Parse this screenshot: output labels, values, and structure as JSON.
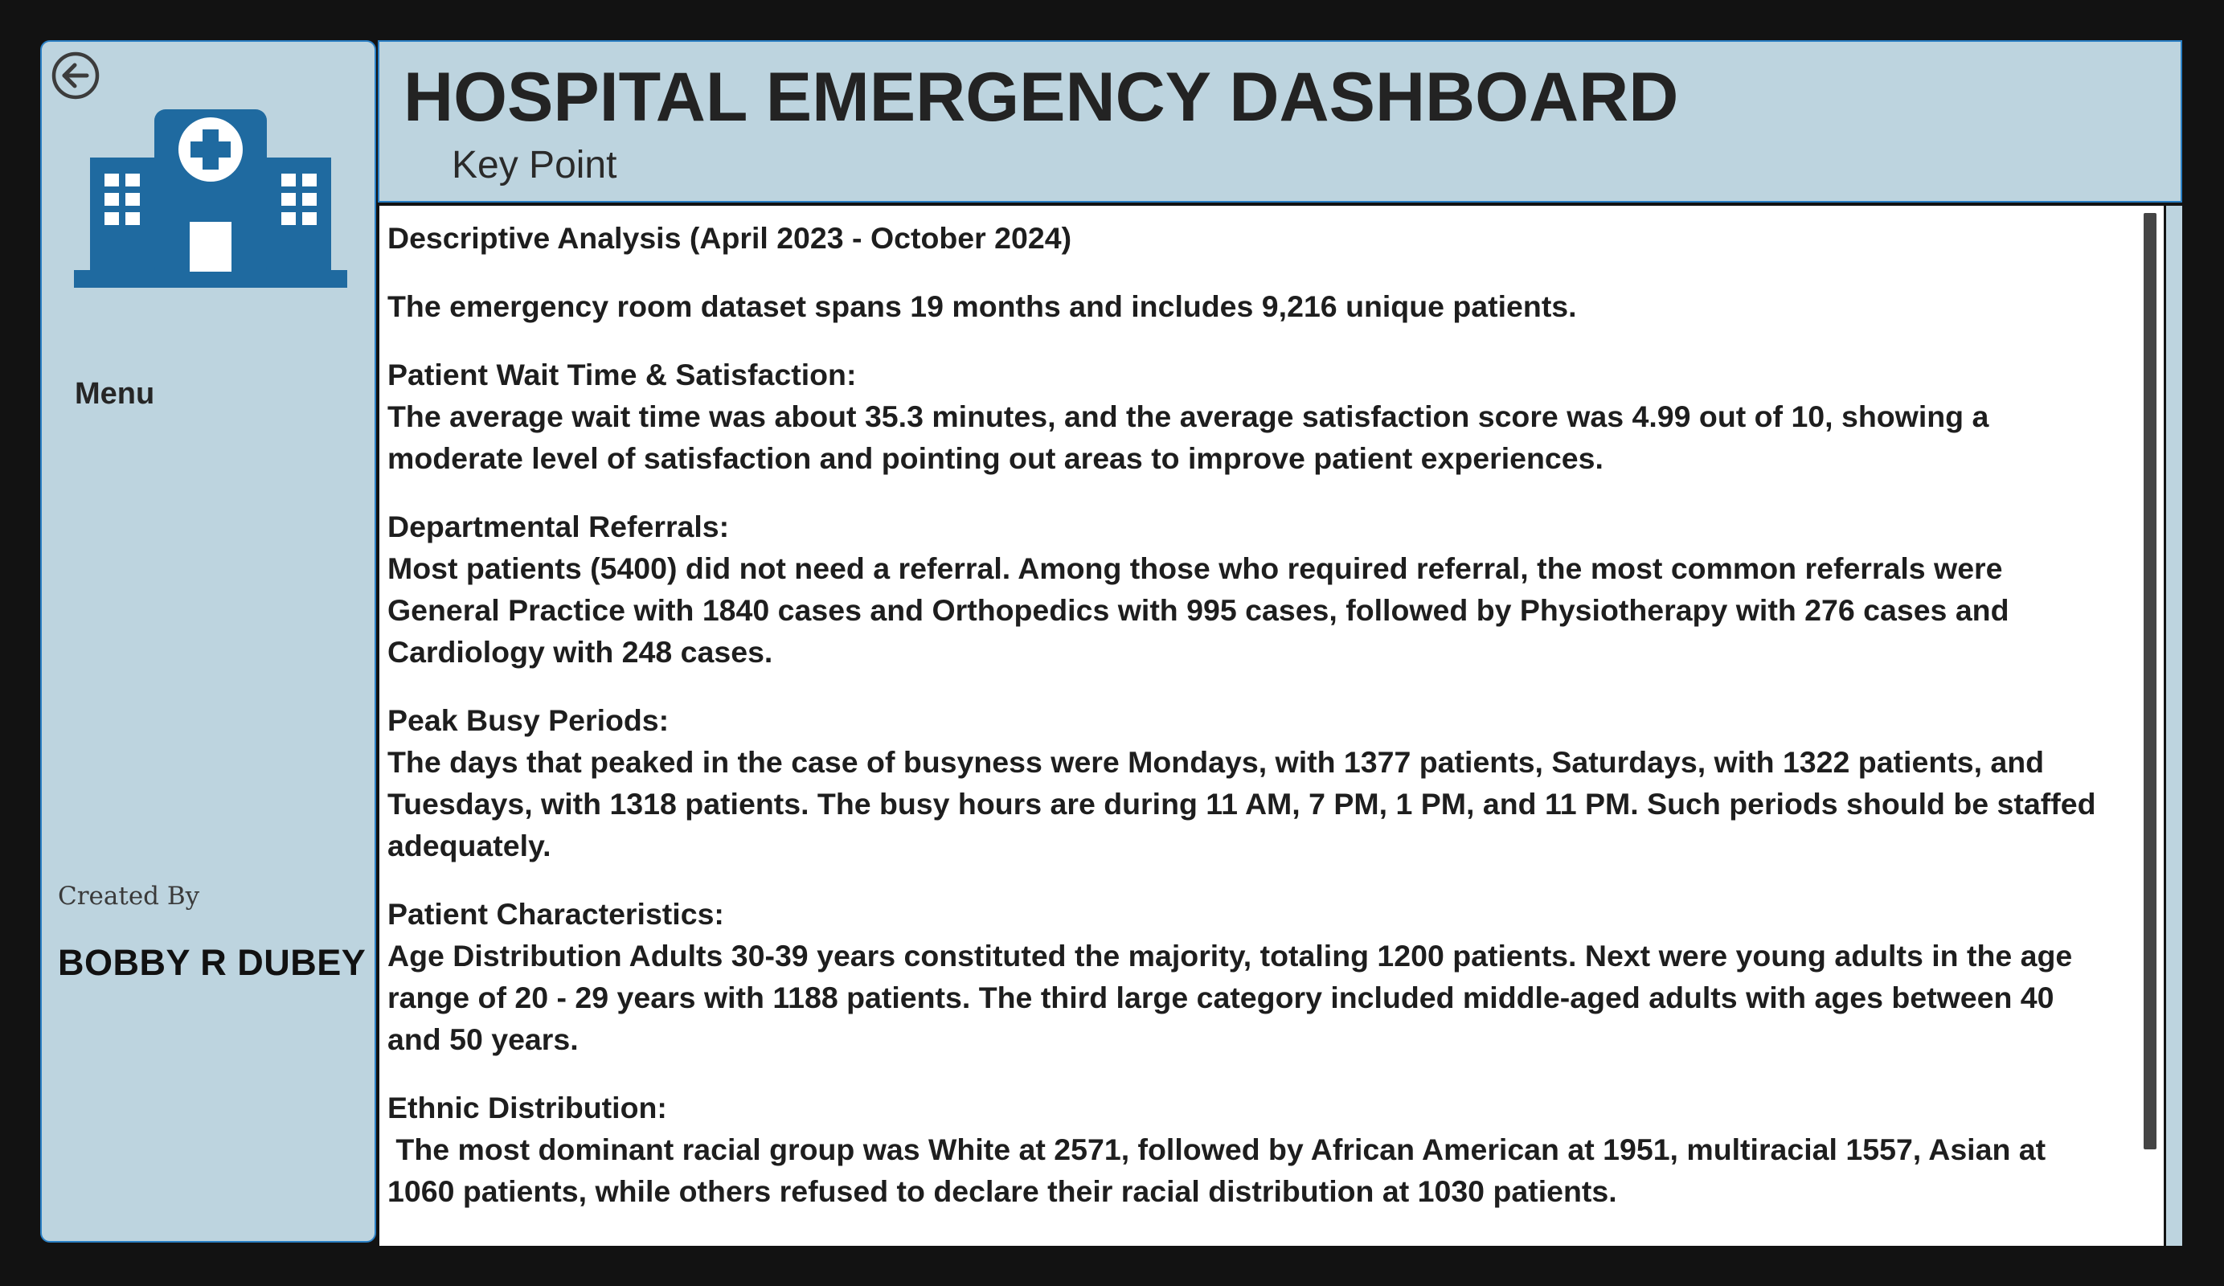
{
  "sidebar": {
    "back_icon": "arrow-left-circle-icon",
    "logo_icon": "hospital-building-icon",
    "menu_label": "Menu",
    "created_by_label": "Created By",
    "author": "BOBBY R DUBEY"
  },
  "header": {
    "title": "HOSPITAL EMERGENCY DASHBOARD",
    "subtitle": "Key Point"
  },
  "colors": {
    "panel_background": "#bdd4df",
    "panel_border": "#2a7fc4",
    "logo_blue": "#1f6aa0",
    "page_background": "#121212"
  },
  "content": {
    "intro_heading": "Descriptive Analysis (April 2023 - October 2024)",
    "intro_text": "The emergency room dataset spans 19 months and includes 9,216 unique patients.",
    "sections": [
      {
        "heading": "Patient Wait Time & Satisfaction:",
        "text": "The average wait time was about 35.3 minutes, and the average satisfaction score was 4.99 out of 10, showing a moderate level of satisfaction and pointing out areas to improve patient experiences."
      },
      {
        "heading": "Departmental Referrals:",
        "text": "Most patients (5400) did not need a referral. Among those who required referral, the most common referrals were General Practice with 1840 cases and Orthopedics with 995 cases, followed by Physiotherapy with 276 cases and Cardiology with 248 cases."
      },
      {
        "heading": "Peak Busy Periods:",
        "text": "The days that peaked in the case of busyness were Mondays, with 1377 patients, Saturdays, with 1322 patients, and Tuesdays, with 1318 patients. The busy hours are during 11 AM, 7 PM, 1 PM, and 11 PM. Such periods should be staffed adequately."
      },
      {
        "heading": "Patient Characteristics:",
        "text": "Age Distribution Adults 30-39 years constituted the majority, totaling 1200 patients. Next were young adults in the age range of 20 - 29 years with 1188 patients. The third large category included middle-aged adults with ages between 40 and 50 years."
      },
      {
        "heading": "Ethnic Distribution:",
        "text": " The most dominant racial group was White at 2571, followed by African American at 1951, multiracial 1557, Asian at 1060 patients, while others refused to declare their racial distribution at 1030 patients."
      }
    ]
  }
}
